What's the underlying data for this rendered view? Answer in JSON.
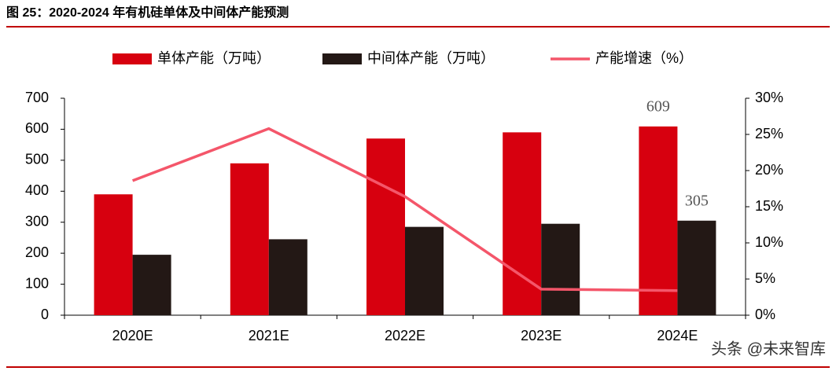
{
  "chart_data": {
    "type": "bar-line",
    "title": "图 25：2020-2024 年有机硅单体及中间体产能预测",
    "categories": [
      "2020E",
      "2021E",
      "2022E",
      "2023E",
      "2024E"
    ],
    "series": [
      {
        "name": "单体产能（万吨）",
        "color": "#d7000f",
        "type": "bar",
        "values": [
          390,
          490,
          570,
          590,
          609
        ],
        "value_labels": [
          null,
          null,
          null,
          null,
          "609"
        ]
      },
      {
        "name": "中间体产能（万吨）",
        "color": "#231815",
        "type": "bar",
        "values": [
          195,
          245,
          285,
          295,
          305
        ],
        "value_labels": [
          null,
          null,
          null,
          null,
          "305"
        ]
      },
      {
        "name": "产能增速（%）",
        "color": "#f4566a",
        "type": "line",
        "axis": "y2",
        "values": [
          18.6,
          25.8,
          16.4,
          3.6,
          3.4
        ]
      }
    ],
    "ylim": [
      0,
      700
    ],
    "yticks": [
      0,
      100,
      200,
      300,
      400,
      500,
      600,
      700
    ],
    "y2lim": [
      0,
      30
    ],
    "y2ticks": [
      {
        "value": 0,
        "label": "0%"
      },
      {
        "value": 5,
        "label": "5%"
      },
      {
        "value": 10,
        "label": "10%"
      },
      {
        "value": 15,
        "label": "15%"
      },
      {
        "value": 20,
        "label": "20%"
      },
      {
        "value": 25,
        "label": "25%"
      },
      {
        "value": 30,
        "label": "30%"
      }
    ],
    "legend": "top",
    "watermark": "头条 @未来智库"
  }
}
